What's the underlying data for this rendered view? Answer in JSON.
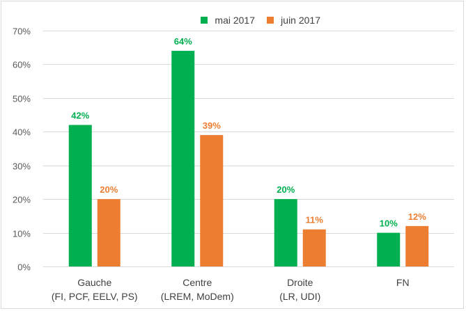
{
  "chart_data": {
    "type": "bar",
    "title": "",
    "xlabel": "",
    "ylabel": "",
    "categories": [
      [
        "Gauche",
        "(FI, PCF, EELV, PS)"
      ],
      [
        "Centre",
        "(LREM, MoDem)"
      ],
      [
        "Droite",
        "(LR, UDI)"
      ],
      [
        "FN"
      ]
    ],
    "series": [
      {
        "name": "mai 2017",
        "color": "#00b050",
        "values": [
          42,
          64,
          20,
          10
        ],
        "labels": [
          "42%",
          "64%",
          "20%",
          "10%"
        ]
      },
      {
        "name": "juin 2017",
        "color": "#ed7d31",
        "values": [
          20,
          39,
          11,
          12
        ],
        "labels": [
          "20%",
          "39%",
          "11%",
          "12%"
        ]
      }
    ],
    "ylim": [
      0,
      70
    ],
    "yticks": [
      0,
      10,
      20,
      30,
      40,
      50,
      60,
      70
    ],
    "ytick_labels": [
      "0%",
      "10%",
      "20%",
      "30%",
      "40%",
      "50%",
      "60%",
      "70%"
    ],
    "grid": true,
    "legend_position": "top"
  }
}
